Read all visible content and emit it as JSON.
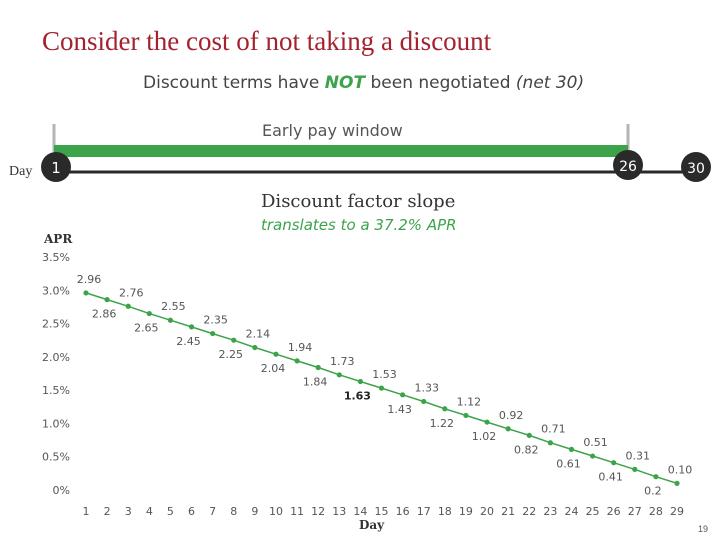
{
  "slide": {
    "title": "Consider the cost of not taking a discount",
    "subtitle_part1": "Discount terms have ",
    "subtitle_not": "NOT",
    "subtitle_part2": " been negotiated ",
    "subtitle_terms": "(net 30)",
    "page_number": "19"
  },
  "timeline": {
    "window_label": "Early pay window",
    "day_label": "Day",
    "start_day": "1",
    "window_end_day": "26",
    "term_end_day": "30"
  },
  "colors": {
    "accent_green": "#3ca34b",
    "title_red": "#a3222e",
    "marker_dark": "#2a2a2a",
    "timeline_gray": "#b5b5b5"
  },
  "chart_data": {
    "type": "line",
    "title": "Discount factor slope",
    "subtitle": "translates to a 37.2% APR",
    "xlabel": "Day",
    "ylabel": "APR",
    "x": [
      1,
      2,
      3,
      4,
      5,
      6,
      7,
      8,
      9,
      10,
      11,
      12,
      13,
      14,
      15,
      16,
      17,
      18,
      19,
      20,
      21,
      22,
      23,
      24,
      25,
      26,
      27,
      28,
      29
    ],
    "x_tick_labels": [
      "1",
      "2",
      "3",
      "4",
      "5",
      "6",
      "7",
      "8",
      "9",
      "10",
      "11",
      "12",
      "13",
      "14",
      "15",
      "16",
      "17",
      "18",
      "19",
      "20",
      "21",
      "22",
      "23",
      "24",
      "25",
      "26",
      "27",
      "28",
      "29"
    ],
    "values": [
      2.96,
      2.86,
      2.76,
      2.65,
      2.55,
      2.45,
      2.35,
      2.25,
      2.14,
      2.04,
      1.94,
      1.84,
      1.73,
      1.63,
      1.53,
      1.43,
      1.33,
      1.22,
      1.12,
      1.02,
      0.92,
      0.82,
      0.71,
      0.61,
      0.51,
      0.41,
      0.31,
      0.2,
      0.1
    ],
    "data_labels": [
      "2.96",
      "2.86",
      "2.76",
      "2.65",
      "2.55",
      "2.45",
      "2.35",
      "2.25",
      "2.14",
      "2.04",
      "1.94",
      "1.84",
      "1.73",
      "1.63",
      "1.53",
      "1.43",
      "1.33",
      "1.22",
      "1.12",
      "1.02",
      "0.92",
      "0.82",
      "0.71",
      "0.61",
      "0.51",
      "0.41",
      "0.31",
      "0.2",
      "0.10"
    ],
    "bold_labels": [
      14
    ],
    "y_ticks": [
      0,
      0.5,
      1.0,
      1.5,
      2.0,
      2.5,
      3.0,
      3.5
    ],
    "y_tick_labels": [
      "0%",
      "0.5%",
      "1.0%",
      "1.5%",
      "2.0%",
      "2.5%",
      "3.0%",
      "3.5%"
    ],
    "ylim": [
      0,
      3.5
    ],
    "xlim": [
      1,
      29
    ],
    "grid": false,
    "legend": "none"
  }
}
